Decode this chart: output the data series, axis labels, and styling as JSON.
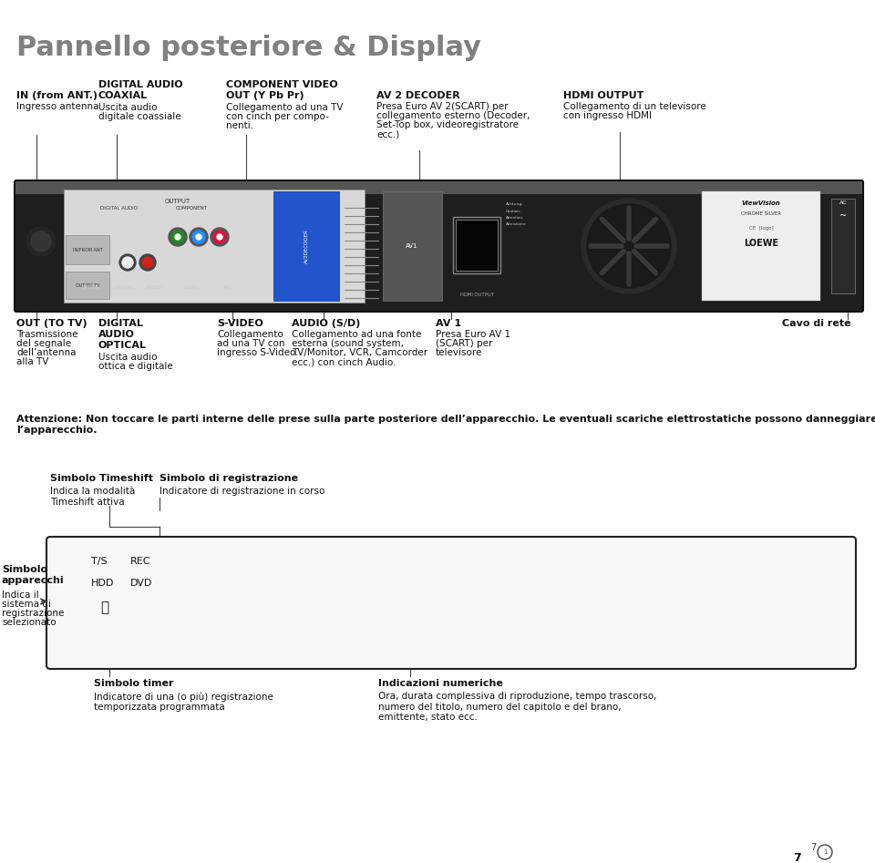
{
  "title": "Pannello posteriore & Display",
  "title_color": "#808080",
  "title_fontsize": 20,
  "bg_color": "#ffffff",
  "warning_text": "Attenzione: Non toccare le parti interne delle prese sulla parte posteriore dell’apparecchio. Le eventuali scariche elettrostatiche possono danneggiare\nl’apparecchio.",
  "simbolo_timeshift_bold": "Simbolo Timeshift",
  "simbolo_timeshift_text1": "Indica la modalità",
  "simbolo_timeshift_text2": "Timeshift attiva",
  "simbolo_reg_bold": "Simbolo di registrazione",
  "simbolo_reg_text": "Indicatore di registrazione in corso",
  "simbolo_app_bold1": "Simbolo",
  "simbolo_app_bold2": "apparecchi",
  "simbolo_app_text": "Indica il\nsistema di\nregistrazione\nselezionato",
  "display_ts_label": "T/S",
  "display_rec_label": "REC",
  "display_hdd_label": "HDD",
  "display_dvd_label": "DVD",
  "simbolo_timer_bold": "Simbolo timer",
  "simbolo_timer_text": "Indicatore di una (o più) registrazione\ntemporizzata programmata",
  "indicazioni_bold": "Indicazioni numeriche",
  "indicazioni_text": "Ora, durata complessiva di riproduzione, tempo trascorso,\nnumero del titolo, numero del capitolo e del brano,\nemittente, stato ecc.",
  "page_number": "7"
}
